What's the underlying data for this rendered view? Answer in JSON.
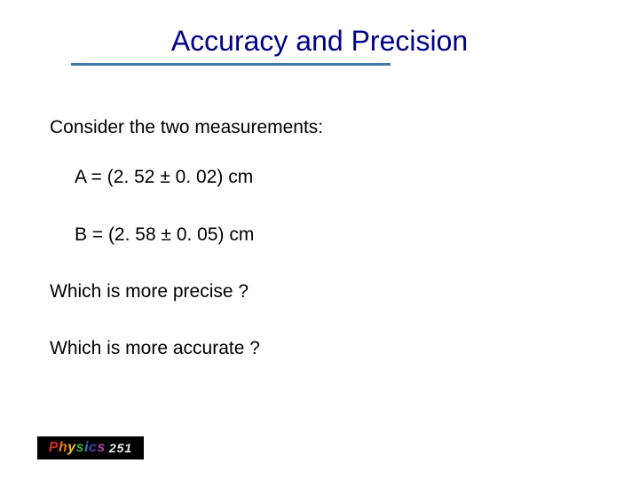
{
  "title": {
    "text": "Accuracy and Precision",
    "color": "#000088",
    "fontsize": 32,
    "underline_color": "#3b7aa8"
  },
  "body": {
    "intro": "Consider the two measurements:",
    "measurement_a": "A = (2. 52 ± 0. 02) cm",
    "measurement_b": "B = (2. 58 ± 0. 05) cm",
    "question_precise": "Which is more precise ?",
    "question_accurate": "Which is more accurate ?",
    "fontsize": 21,
    "color": "#000000"
  },
  "footer": {
    "logo_word": "Physics",
    "logo_number": "251",
    "logo_bg": "#000000",
    "letter_colors": [
      "#d42a2a",
      "#e87a1f",
      "#e8c51f",
      "#3fae3f",
      "#2a7ad4",
      "#3f3fae",
      "#b43fae"
    ],
    "number_color": "#e8e8e8"
  }
}
